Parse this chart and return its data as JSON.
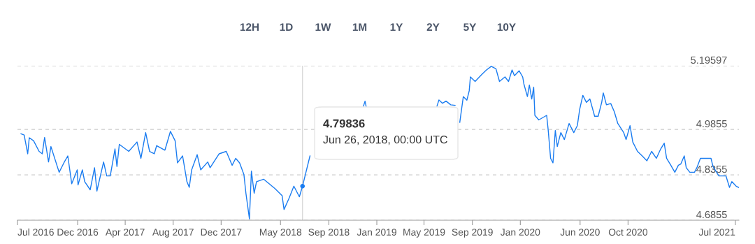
{
  "chart_data": {
    "type": "line",
    "annotations": [
      "12H",
      "1D",
      "1W",
      "1M",
      "1Y",
      "2Y",
      "5Y",
      "10Y",
      "4.79836",
      "Jun 26, 2018, 00:00 UTC"
    ],
    "x": [
      "2016-07-10",
      "2016-07-18",
      "2016-07-27",
      "2016-07-31",
      "2016-08-11",
      "2016-08-25",
      "2016-09-02",
      "2016-09-08",
      "2016-09-18",
      "2016-09-24",
      "2016-10-15",
      "2016-10-27",
      "2016-11-06",
      "2016-11-16",
      "2016-11-30",
      "2016-12-02",
      "2016-12-13",
      "2016-12-19",
      "2017-01-02",
      "2017-01-13",
      "2017-01-19",
      "2017-02-05",
      "2017-02-13",
      "2017-02-22",
      "2017-03-06",
      "2017-03-11",
      "2017-03-17",
      "2017-04-10",
      "2017-05-01",
      "2017-05-11",
      "2017-05-23",
      "2017-06-02",
      "2017-06-14",
      "2017-06-20",
      "2017-07-11",
      "2017-07-25",
      "2017-08-06",
      "2017-08-12",
      "2017-08-25",
      "2017-09-05",
      "2017-09-11",
      "2017-09-17",
      "2017-10-01",
      "2017-10-10",
      "2017-10-28",
      "2017-11-03",
      "2017-11-26",
      "2017-12-14",
      "2017-12-29",
      "2018-01-07",
      "2018-01-17",
      "2018-01-28",
      "2018-02-02",
      "2018-02-11",
      "2018-02-16",
      "2018-02-23",
      "2018-03-01",
      "2018-03-19",
      "2018-04-17",
      "2018-05-05",
      "2018-05-10",
      "2018-05-23",
      "2018-06-04",
      "2018-06-18",
      "2018-06-26",
      "2018-07-15",
      "2018-08-11",
      "2018-11-28",
      "2018-12-02",
      "2018-12-05",
      "2018-12-20",
      "2019-05-21",
      "2019-06-03",
      "2019-06-08",
      "2019-06-17",
      "2019-06-26",
      "2019-07-08",
      "2019-07-19",
      "2019-07-26",
      "2019-07-31",
      "2019-08-09",
      "2019-08-18",
      "2019-08-24",
      "2019-08-27",
      "2019-09-08",
      "2019-09-25",
      "2019-10-07",
      "2019-10-19",
      "2019-10-31",
      "2019-11-09",
      "2019-11-23",
      "2019-12-02",
      "2019-12-11",
      "2019-12-17",
      "2019-12-29",
      "2020-01-07",
      "2020-01-10",
      "2020-01-19",
      "2020-01-24",
      "2020-01-30",
      "2020-02-04",
      "2020-02-07",
      "2020-02-17",
      "2020-03-08",
      "2020-03-12",
      "2020-03-18",
      "2020-03-24",
      "2020-03-30",
      "2020-04-04",
      "2020-04-13",
      "2020-04-22",
      "2020-05-04",
      "2020-05-16",
      "2020-05-25",
      "2020-05-31",
      "2020-06-08",
      "2020-06-17",
      "2020-06-26",
      "2020-07-08",
      "2020-07-17",
      "2020-07-26",
      "2020-07-30",
      "2020-08-07",
      "2020-08-18",
      "2020-08-27",
      "2020-09-05",
      "2020-09-20",
      "2020-09-26",
      "2020-10-06",
      "2020-10-13",
      "2020-10-25",
      "2020-11-06",
      "2020-11-18",
      "2020-11-30",
      "2020-12-12",
      "2020-12-23",
      "2021-01-01",
      "2021-01-07",
      "2021-01-16",
      "2021-01-28",
      "2021-02-06",
      "2021-02-12",
      "2021-02-21",
      "2021-02-26",
      "2021-03-07",
      "2021-03-19",
      "2021-03-25",
      "2021-04-03",
      "2021-04-21",
      "2021-04-30",
      "2021-05-05",
      "2021-05-20",
      "2021-06-07",
      "2021-06-16",
      "2021-06-22",
      "2021-07-03",
      "2021-07-09"
    ],
    "series": [
      {
        "color": "#1a7cf0",
        "values": [
          4.971,
          4.967,
          4.905,
          4.958,
          4.948,
          4.913,
          4.905,
          4.959,
          4.878,
          4.929,
          4.844,
          4.875,
          4.898,
          4.806,
          4.852,
          4.802,
          4.852,
          4.813,
          4.786,
          4.859,
          4.782,
          4.878,
          4.832,
          4.832,
          4.921,
          4.863,
          4.936,
          4.913,
          4.944,
          4.89,
          4.975,
          4.913,
          4.905,
          4.932,
          4.917,
          4.979,
          4.948,
          4.875,
          4.898,
          4.813,
          4.794,
          4.852,
          4.902,
          4.852,
          4.878,
          4.859,
          4.905,
          4.913,
          4.867,
          4.89,
          4.875,
          4.836,
          4.775,
          4.69,
          4.848,
          4.775,
          4.813,
          4.821,
          4.79,
          4.767,
          4.721,
          4.759,
          4.798,
          4.763,
          4.798,
          4.898,
          null,
          5.062,
          5.079,
          5.06,
          null,
          null,
          5.062,
          5.083,
          5.072,
          5.079,
          5.067,
          5.065,
          null,
          5.009,
          5.094,
          5.082,
          5.113,
          5.159,
          5.144,
          5.167,
          5.182,
          5.194,
          5.186,
          5.144,
          5.159,
          5.144,
          5.182,
          5.163,
          5.179,
          5.159,
          5.136,
          5.094,
          5.132,
          5.086,
          5.125,
          5.032,
          5.017,
          5.032,
          4.982,
          4.89,
          4.875,
          4.982,
          4.929,
          4.975,
          4.952,
          5.005,
          4.975,
          4.998,
          5.052,
          5.098,
          5.075,
          5.086,
          5.029,
          5.029,
          5.075,
          5.106,
          5.067,
          5.071,
          5.044,
          5.005,
          4.975,
          4.952,
          4.998,
          4.944,
          4.913,
          4.898,
          4.882,
          4.913,
          4.89,
          4.921,
          4.94,
          4.89,
          4.871,
          4.844,
          4.867,
          4.871,
          4.898,
          4.859,
          4.844,
          4.844,
          4.859,
          4.89,
          4.89,
          4.89,
          4.863,
          4.832,
          4.832,
          4.794,
          4.813,
          4.798,
          4.794
        ]
      },
      {
        "type": "scatter",
        "color": "#1a7cf0",
        "x": [
          "2018-06-26"
        ],
        "values": [
          4.798
        ]
      }
    ],
    "xlim": [
      "2016-07-01",
      "2021-07-10"
    ],
    "xticks": [
      {
        "value": "2016-07-01",
        "label": "Jul 2016"
      },
      {
        "value": "2016-12-01",
        "label": "Dec 2016"
      },
      {
        "value": "2017-04-01",
        "label": "Apr 2017"
      },
      {
        "value": "2017-08-01",
        "label": "Aug 2017"
      },
      {
        "value": "2017-12-01",
        "label": "Dec 2017"
      },
      {
        "value": "2018-05-01",
        "label": "May 2018"
      },
      {
        "value": "2018-09-01",
        "label": "Sep 2018"
      },
      {
        "value": "2019-01-01",
        "label": "Jan 2019"
      },
      {
        "value": "2019-05-01",
        "label": "May 2019"
      },
      {
        "value": "2019-09-01",
        "label": "Sep 2019"
      },
      {
        "value": "2020-01-01",
        "label": "Jan 2020"
      },
      {
        "value": "2020-06-01",
        "label": "Jun 2020"
      },
      {
        "value": "2020-10-01",
        "label": "Oct 2020"
      },
      {
        "value": "2021-07-01",
        "label": "Jul 2021"
      }
    ],
    "ylim": [
      4.6855,
      5.19597
    ],
    "yticks": [
      4.6855,
      4.8355,
      4.9855,
      5.19597
    ],
    "grid": "y",
    "ref_lines": [
      {
        "axis": "x",
        "value": "2018-06-26",
        "color": "#d9d9d9"
      }
    ],
    "legend": false
  }
}
